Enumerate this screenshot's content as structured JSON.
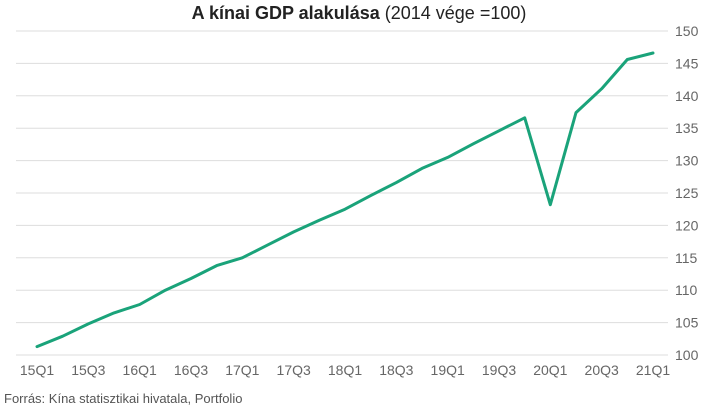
{
  "title": {
    "bold": "A kínai GDP alakulása",
    "normal": "(2014 vége =100)"
  },
  "source": "Forrás: Kína statisztikai hivatala, Portfolio",
  "colors": {
    "line": "#1aa37a",
    "grid": "#dddddd",
    "axis_text": "#666666"
  },
  "chart_data": {
    "type": "line",
    "x": [
      "15Q1",
      "15Q2",
      "15Q3",
      "15Q4",
      "16Q1",
      "16Q2",
      "16Q3",
      "16Q4",
      "17Q1",
      "17Q2",
      "17Q3",
      "17Q4",
      "18Q1",
      "18Q2",
      "18Q3",
      "18Q4",
      "19Q1",
      "19Q2",
      "19Q3",
      "19Q4",
      "20Q1",
      "20Q2",
      "20Q3",
      "20Q4",
      "21Q1"
    ],
    "series": [
      {
        "values": [
          101.3,
          102.9,
          104.8,
          106.5,
          107.8,
          110.0,
          111.8,
          113.8,
          115.0,
          117.0,
          119.0,
          120.8,
          122.5,
          124.6,
          126.6,
          128.8,
          130.5,
          132.6,
          134.6,
          136.6,
          123.2,
          137.4,
          141.1,
          145.6,
          146.6
        ]
      }
    ],
    "x_tick_labels": [
      "15Q1",
      "15Q3",
      "16Q1",
      "16Q3",
      "17Q1",
      "17Q3",
      "18Q1",
      "18Q3",
      "19Q1",
      "19Q3",
      "20Q1",
      "20Q3",
      "21Q1"
    ],
    "y_ticks": [
      100,
      105,
      110,
      115,
      120,
      125,
      130,
      135,
      140,
      145,
      150
    ],
    "ylim": [
      100,
      150
    ],
    "grid": true,
    "y_axis_position": "right"
  }
}
